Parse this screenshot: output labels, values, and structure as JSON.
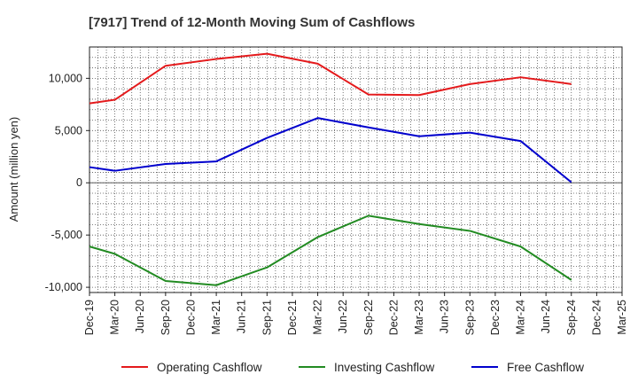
{
  "chart_data": {
    "type": "line",
    "title": "[7917]  Trend of 12-Month Moving Sum of Cashflows",
    "ylabel": "Amount (million yen)",
    "xlabel": "",
    "ylim": [
      -10500,
      13000
    ],
    "yticks": [
      10000,
      5000,
      0,
      -5000,
      -10000
    ],
    "ytick_labels": [
      "10,000",
      "5,000",
      "0",
      "-5,000",
      "-10,000"
    ],
    "x": [
      "Dec-19",
      "Mar-20",
      "Jun-20",
      "Sep-20",
      "Dec-20",
      "Mar-21",
      "Jun-21",
      "Sep-21",
      "Dec-21",
      "Mar-22",
      "Jun-22",
      "Sep-22",
      "Dec-22",
      "Mar-23",
      "Jun-23",
      "Sep-23",
      "Dec-23",
      "Mar-24",
      "Jun-24",
      "Sep-24",
      "Dec-24",
      "Mar-25"
    ],
    "grid": true,
    "legend_position": "bottom",
    "series": [
      {
        "name": "Operating Cashflow",
        "color": "#e41a1c",
        "points": [
          [
            "Dec-19",
            7600
          ],
          [
            "Mar-20",
            7950
          ],
          [
            "Sep-20",
            11200
          ],
          [
            "Mar-21",
            11850
          ],
          [
            "Sep-21",
            12350
          ],
          [
            "Mar-22",
            11400
          ],
          [
            "Sep-22",
            8450
          ],
          [
            "Mar-23",
            8400
          ],
          [
            "Sep-23",
            9450
          ],
          [
            "Mar-24",
            10100
          ],
          [
            "Sep-24",
            9450
          ]
        ]
      },
      {
        "name": "Investing Cashflow",
        "color": "#228b22",
        "points": [
          [
            "Dec-19",
            -6100
          ],
          [
            "Mar-20",
            -6800
          ],
          [
            "Sep-20",
            -9400
          ],
          [
            "Mar-21",
            -9800
          ],
          [
            "Sep-21",
            -8100
          ],
          [
            "Mar-22",
            -5200
          ],
          [
            "Sep-22",
            -3150
          ],
          [
            "Mar-23",
            -3950
          ],
          [
            "Sep-23",
            -4600
          ],
          [
            "Mar-24",
            -6100
          ],
          [
            "Sep-24",
            -9300
          ]
        ]
      },
      {
        "name": "Free Cashflow",
        "color": "#0000cd",
        "points": [
          [
            "Dec-19",
            1500
          ],
          [
            "Mar-20",
            1150
          ],
          [
            "Sep-20",
            1800
          ],
          [
            "Mar-21",
            2050
          ],
          [
            "Sep-21",
            4300
          ],
          [
            "Mar-22",
            6200
          ],
          [
            "Sep-22",
            5300
          ],
          [
            "Mar-23",
            4450
          ],
          [
            "Sep-23",
            4800
          ],
          [
            "Mar-24",
            4000
          ],
          [
            "Sep-24",
            50
          ]
        ]
      }
    ]
  }
}
